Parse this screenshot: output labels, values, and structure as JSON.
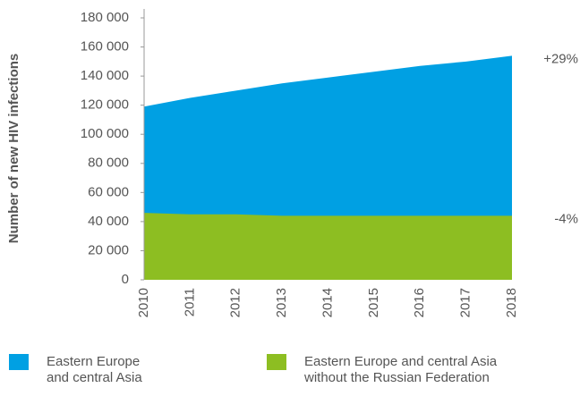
{
  "chart_data": {
    "type": "area",
    "ylabel": "Number of new HIV infections",
    "categories": [
      "2010",
      "2011",
      "2012",
      "2013",
      "2014",
      "2015",
      "2016",
      "2017",
      "2018"
    ],
    "series": [
      {
        "name": "Eastern Europe and central Asia",
        "color": "#00a0e3",
        "values": [
          119000,
          125000,
          130000,
          135000,
          139000,
          143000,
          147000,
          150000,
          154000
        ]
      },
      {
        "name": "Eastern Europe and central Asia without the Russian Federation",
        "color": "#8dbe22",
        "values": [
          46000,
          45000,
          45000,
          44000,
          44000,
          44000,
          44000,
          44000,
          44000
        ]
      }
    ],
    "annotations": [
      "+29%",
      "-4%"
    ],
    "ylim": [
      0,
      180000
    ],
    "yticks": [
      0,
      {
        "value": 20000,
        "label": "20 000"
      },
      {
        "value": 40000,
        "label": "40 000"
      },
      {
        "value": 60000,
        "label": "60 000"
      },
      {
        "value": 80000,
        "label": "80 000"
      },
      {
        "value": 100000,
        "label": "100 000"
      },
      {
        "value": 120000,
        "label": "120 000"
      },
      {
        "value": 140000,
        "label": "140 000"
      },
      {
        "value": 160000,
        "label": "160 000"
      },
      {
        "value": 180000,
        "label": "180 000"
      }
    ]
  }
}
